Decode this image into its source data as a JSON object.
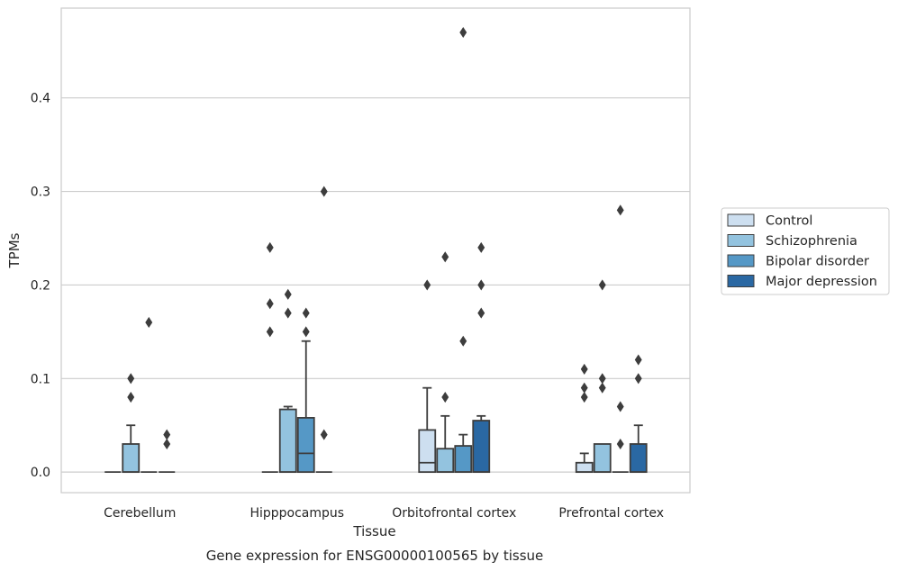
{
  "chart_data": {
    "type": "boxplot",
    "title": "Gene expression for ENSG00000100565 by tissue",
    "xlabel": "Tissue",
    "ylabel": "TPMs",
    "ylim": [
      -0.022,
      0.496
    ],
    "yticks": [
      "0.0",
      "0.1",
      "0.2",
      "0.3",
      "0.4"
    ],
    "grid": "horizontal",
    "legend_position": "right",
    "categories": [
      "Cerebellum",
      "Hipppocampus",
      "Orbitofrontal cortex",
      "Prefrontal cortex"
    ],
    "series": [
      {
        "name": "Control",
        "color": "#cddff0",
        "boxes": [
          {
            "q1": 0,
            "median": 0,
            "q3": 0,
            "whisker_low": 0,
            "whisker_high": 0,
            "outliers": []
          },
          {
            "q1": 0,
            "median": 0,
            "q3": 0,
            "whisker_low": 0,
            "whisker_high": 0,
            "outliers": [
              0.15,
              0.18,
              0.24
            ]
          },
          {
            "q1": 0,
            "median": 0.01,
            "q3": 0.045,
            "whisker_low": 0,
            "whisker_high": 0.09,
            "outliers": [
              0.2
            ]
          },
          {
            "q1": 0,
            "median": 0,
            "q3": 0.01,
            "whisker_low": 0,
            "whisker_high": 0.02,
            "outliers": [
              0.08,
              0.09,
              0.11
            ]
          }
        ]
      },
      {
        "name": "Schizophrenia",
        "color": "#93c3df",
        "boxes": [
          {
            "q1": 0,
            "median": 0,
            "q3": 0.03,
            "whisker_low": 0,
            "whisker_high": 0.05,
            "outliers": [
              0.08,
              0.1
            ]
          },
          {
            "q1": 0,
            "median": 0,
            "q3": 0.067,
            "whisker_low": 0,
            "whisker_high": 0.07,
            "outliers": [
              0.17,
              0.19
            ]
          },
          {
            "q1": 0,
            "median": 0,
            "q3": 0.025,
            "whisker_low": 0,
            "whisker_high": 0.06,
            "outliers": [
              0.08,
              0.23
            ]
          },
          {
            "q1": 0,
            "median": 0,
            "q3": 0.03,
            "whisker_low": 0,
            "whisker_high": 0.03,
            "outliers": [
              0.09,
              0.1,
              0.2
            ]
          }
        ]
      },
      {
        "name": "Bipolar disorder",
        "color": "#5598c6",
        "boxes": [
          {
            "q1": 0,
            "median": 0,
            "q3": 0,
            "whisker_low": 0,
            "whisker_high": 0,
            "outliers": [
              0.16
            ]
          },
          {
            "q1": 0,
            "median": 0.02,
            "q3": 0.058,
            "whisker_low": 0,
            "whisker_high": 0.14,
            "outliers": [
              0.15,
              0.17
            ]
          },
          {
            "q1": 0,
            "median": 0,
            "q3": 0.028,
            "whisker_low": 0,
            "whisker_high": 0.04,
            "outliers": [
              0.14,
              0.47
            ]
          },
          {
            "q1": 0,
            "median": 0,
            "q3": 0,
            "whisker_low": 0,
            "whisker_high": 0,
            "outliers": [
              0.03,
              0.07,
              0.28
            ]
          }
        ]
      },
      {
        "name": "Major depression",
        "color": "#2a68a3",
        "boxes": [
          {
            "q1": 0,
            "median": 0,
            "q3": 0,
            "whisker_low": 0,
            "whisker_high": 0,
            "outliers": [
              0.03,
              0.04
            ]
          },
          {
            "q1": 0,
            "median": 0,
            "q3": 0,
            "whisker_low": 0,
            "whisker_high": 0,
            "outliers": [
              0.04,
              0.3
            ]
          },
          {
            "q1": 0,
            "median": 0,
            "q3": 0.055,
            "whisker_low": 0,
            "whisker_high": 0.06,
            "outliers": [
              0.17,
              0.2,
              0.24
            ]
          },
          {
            "q1": 0,
            "median": 0,
            "q3": 0.03,
            "whisker_low": 0,
            "whisker_high": 0.05,
            "outliers": [
              0.1,
              0.12
            ]
          }
        ]
      }
    ]
  }
}
